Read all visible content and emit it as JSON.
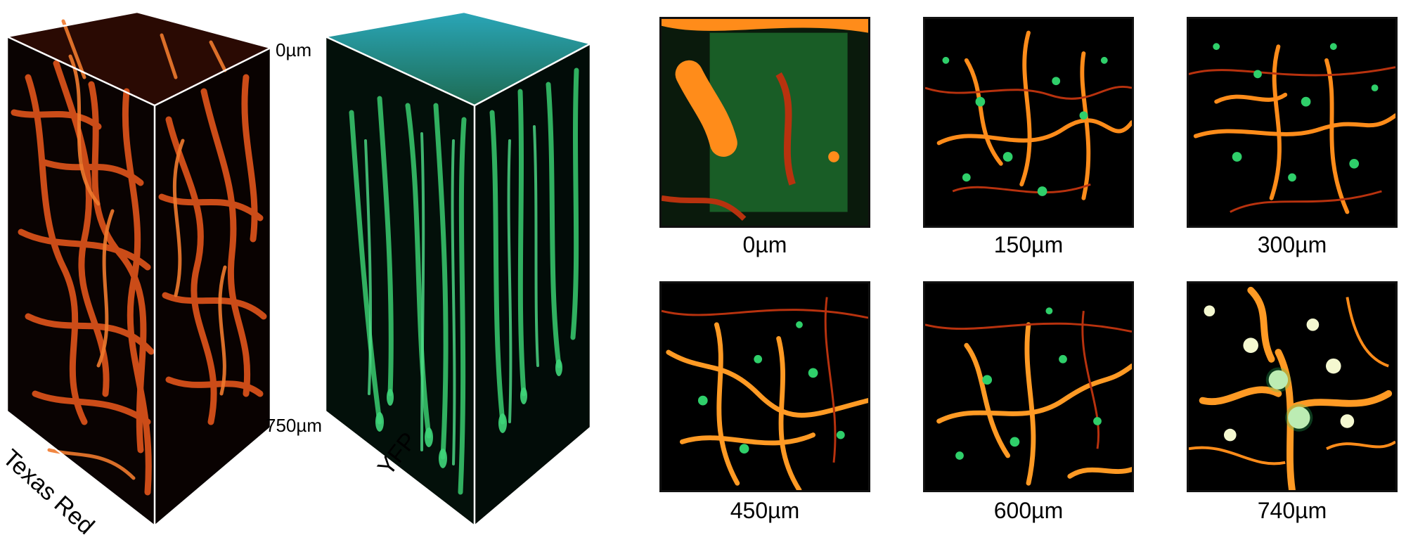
{
  "volumes": [
    {
      "stain": "Texas Red",
      "color": "#e2561c"
    },
    {
      "stain": "YFP",
      "color": "#3fd67a"
    }
  ],
  "depth_axis": {
    "top": "0µm",
    "bottom": "750µm"
  },
  "slices": [
    {
      "depth": "0µm"
    },
    {
      "depth": "150µm"
    },
    {
      "depth": "300µm"
    },
    {
      "depth": "450µm"
    },
    {
      "depth": "600µm"
    },
    {
      "depth": "740µm"
    }
  ],
  "colors": {
    "vessel": "#ff8c1a",
    "vessel_dark": "#b8320e",
    "neuron": "#2fcf6a",
    "background": "#000000"
  }
}
